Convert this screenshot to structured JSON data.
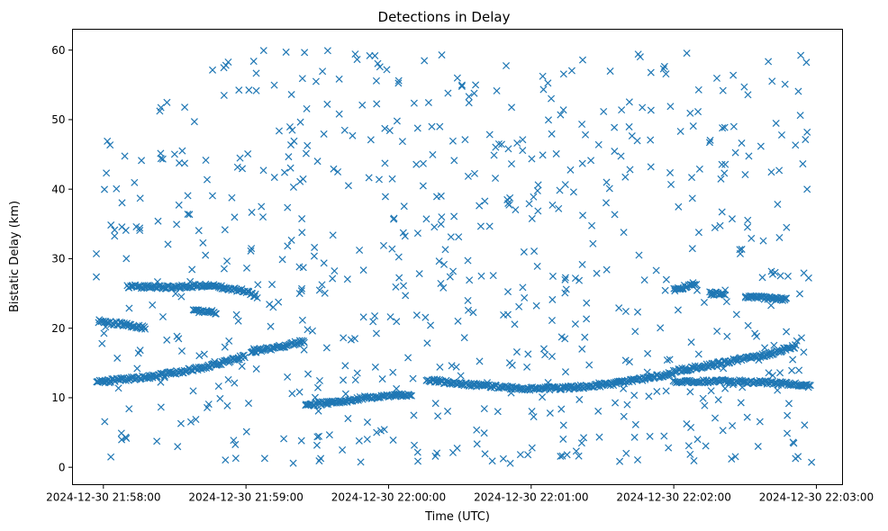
{
  "chart_data": {
    "type": "scatter",
    "title": "Detections in Delay",
    "xlabel": "Time (UTC)",
    "ylabel": "Bistatic Delay (km)",
    "marker": "x",
    "marker_color": "#1f77b4",
    "grid": false,
    "legend": "none",
    "x_range": [
      "2024-12-30 21:57:47",
      "2024-12-30 22:03:11"
    ],
    "ylim": [
      -2.5,
      63
    ],
    "x_ticks": [
      "2024-12-30 21:58:00",
      "2024-12-30 21:59:00",
      "2024-12-30 22:00:00",
      "2024-12-30 22:01:00",
      "2024-12-30 22:02:00",
      "2024-12-30 22:03:00"
    ],
    "y_ticks": [
      "0",
      "10",
      "20",
      "30",
      "40",
      "50",
      "60"
    ],
    "x_start": "2024-12-30 21:57:57",
    "x_end": "2024-12-30 22:02:58",
    "tracks": [
      {
        "name": "",
        "points": [
          [
            "2024-12-30 21:57:57",
            12.2
          ],
          [
            "2024-12-30 21:58:10",
            12.7
          ],
          [
            "2024-12-30 21:58:20",
            13.0
          ],
          [
            "2024-12-30 21:58:30",
            13.6
          ],
          [
            "2024-12-30 21:58:40",
            14.2
          ],
          [
            "2024-12-30 21:58:50",
            15.0
          ],
          [
            "2024-12-30 21:59:00",
            16.0
          ]
        ]
      },
      {
        "name": "",
        "points": [
          [
            "2024-12-30 21:59:02",
            16.6
          ],
          [
            "2024-12-30 21:59:15",
            17.4
          ],
          [
            "2024-12-30 21:59:25",
            18.2
          ]
        ]
      },
      {
        "name": "",
        "points": [
          [
            "2024-12-30 21:59:25",
            9.0
          ],
          [
            "2024-12-30 21:59:40",
            9.4
          ],
          [
            "2024-12-30 21:59:50",
            10.0
          ],
          [
            "2024-12-30 22:00:00",
            10.2
          ],
          [
            "2024-12-30 22:00:10",
            10.5
          ]
        ]
      },
      {
        "name": "",
        "points": [
          [
            "2024-12-30 22:00:16",
            12.6
          ],
          [
            "2024-12-30 22:00:30",
            12.0
          ],
          [
            "2024-12-30 22:00:45",
            11.6
          ],
          [
            "2024-12-30 22:01:00",
            11.3
          ],
          [
            "2024-12-30 22:01:15",
            11.4
          ],
          [
            "2024-12-30 22:01:30",
            11.8
          ],
          [
            "2024-12-30 22:01:45",
            12.6
          ],
          [
            "2024-12-30 22:02:00",
            13.5
          ]
        ]
      },
      {
        "name": "",
        "points": [
          [
            "2024-12-30 22:02:00",
            12.2
          ],
          [
            "2024-12-30 22:02:20",
            12.4
          ],
          [
            "2024-12-30 22:02:40",
            12.2
          ],
          [
            "2024-12-30 22:02:58",
            11.7
          ]
        ]
      },
      {
        "name": "",
        "points": [
          [
            "2024-12-30 22:02:00",
            13.8
          ],
          [
            "2024-12-30 22:02:20",
            15.0
          ],
          [
            "2024-12-30 22:02:40",
            16.3
          ],
          [
            "2024-12-30 22:02:52",
            17.5
          ]
        ]
      },
      {
        "name": "",
        "points": [
          [
            "2024-12-30 21:58:10",
            26.0
          ],
          [
            "2024-12-30 21:58:30",
            25.9
          ],
          [
            "2024-12-30 21:58:45",
            26.2
          ],
          [
            "2024-12-30 21:59:00",
            25.3
          ],
          [
            "2024-12-30 21:59:05",
            24.5
          ]
        ]
      },
      {
        "name": "",
        "points": [
          [
            "2024-12-30 21:57:58",
            21.0
          ],
          [
            "2024-12-30 21:58:10",
            20.5
          ],
          [
            "2024-12-30 21:58:18",
            20.0
          ]
        ]
      },
      {
        "name": "",
        "points": [
          [
            "2024-12-30 21:58:38",
            22.5
          ],
          [
            "2024-12-30 21:58:48",
            22.3
          ]
        ]
      },
      {
        "name": "",
        "points": [
          [
            "2024-12-30 22:02:00",
            25.5
          ],
          [
            "2024-12-30 22:02:10",
            26.5
          ]
        ]
      },
      {
        "name": "",
        "points": [
          [
            "2024-12-30 22:02:15",
            25.0
          ],
          [
            "2024-12-30 22:02:22",
            25.0
          ]
        ]
      },
      {
        "name": "",
        "points": [
          [
            "2024-12-30 22:02:30",
            24.5
          ],
          [
            "2024-12-30 22:02:48",
            24.2
          ]
        ]
      }
    ],
    "noise_count": 680,
    "noise_seed": 12345
  }
}
